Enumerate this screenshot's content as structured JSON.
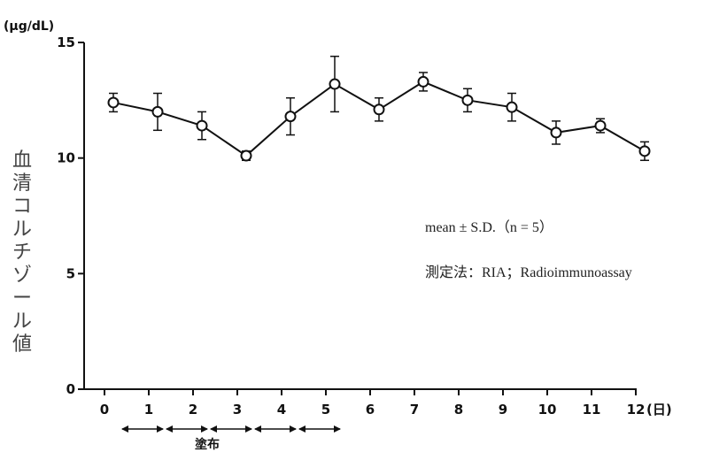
{
  "chart_data": {
    "type": "line",
    "unit_label": "(μg/dL)",
    "ylabel": "血清コルチゾール値",
    "ylim": [
      0,
      15
    ],
    "yticks": [
      "0",
      "5",
      "10",
      "15"
    ],
    "xlim": [
      0,
      12
    ],
    "xticks": [
      "0",
      "1",
      "2",
      "3",
      "4",
      "5",
      "6",
      "7",
      "8",
      "9",
      "10",
      "11",
      "12"
    ],
    "x_unit": "(日)",
    "grid": false,
    "series": [
      {
        "x": [
          0.2,
          1.2,
          2.2,
          3.2,
          4.2,
          5.2,
          6.2,
          7.2,
          8.2,
          9.2,
          10.2,
          11.2,
          12.2
        ],
        "values": [
          12.4,
          12.0,
          11.4,
          10.1,
          11.8,
          13.2,
          12.1,
          13.3,
          12.5,
          12.2,
          11.1,
          11.4,
          10.3
        ],
        "sd": [
          0.4,
          0.8,
          0.6,
          0.2,
          0.8,
          1.2,
          0.5,
          0.4,
          0.5,
          0.6,
          0.5,
          0.3,
          0.4
        ]
      }
    ],
    "annotations": {
      "stats": "mean ± S.D.（n = 5）",
      "method": "測定法：RIA；Radioimmunoassay",
      "application_label": "塗布",
      "application_days": [
        0,
        1,
        2,
        3,
        4
      ]
    }
  }
}
